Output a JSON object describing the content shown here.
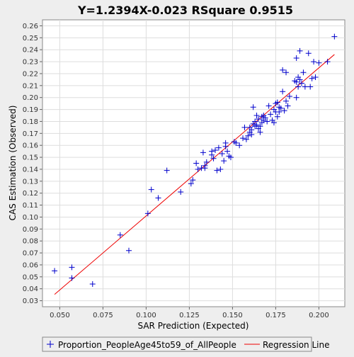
{
  "chart_data": {
    "type": "scatter",
    "title": "Y=1.2394X-0.023    RSquare 0.9515",
    "xlabel": "SAR Prediction (Expected)",
    "ylabel": "CAS Estimation (Observed)",
    "xlim": [
      0.04,
      0.215
    ],
    "ylim": [
      0.025,
      0.265
    ],
    "x_ticks": [
      "0.050",
      "0.075",
      "0.100",
      "0.125",
      "0.150",
      "0.175",
      "0.200"
    ],
    "y_ticks": [
      "0.03",
      "0.04",
      "0.05",
      "0.06",
      "0.07",
      "0.08",
      "0.09",
      "0.10",
      "0.11",
      "0.12",
      "0.13",
      "0.14",
      "0.15",
      "0.16",
      "0.17",
      "0.18",
      "0.19",
      "0.20",
      "0.21",
      "0.22",
      "0.23",
      "0.24",
      "0.25",
      "0.26"
    ],
    "grid": true,
    "legend_position": "bottom",
    "series": [
      {
        "name": "Proportion_PeopleAge45to59_of_AllPeople",
        "color": "#0000cc",
        "marker": "plus",
        "points": [
          [
            0.047,
            0.055
          ],
          [
            0.057,
            0.058
          ],
          [
            0.057,
            0.049
          ],
          [
            0.069,
            0.044
          ],
          [
            0.085,
            0.085
          ],
          [
            0.09,
            0.072
          ],
          [
            0.101,
            0.103
          ],
          [
            0.103,
            0.123
          ],
          [
            0.107,
            0.116
          ],
          [
            0.112,
            0.139
          ],
          [
            0.12,
            0.121
          ],
          [
            0.126,
            0.128
          ],
          [
            0.127,
            0.131
          ],
          [
            0.129,
            0.145
          ],
          [
            0.13,
            0.14
          ],
          [
            0.132,
            0.141
          ],
          [
            0.133,
            0.154
          ],
          [
            0.134,
            0.141
          ],
          [
            0.134,
            0.143
          ],
          [
            0.135,
            0.146
          ],
          [
            0.138,
            0.152
          ],
          [
            0.138,
            0.155
          ],
          [
            0.139,
            0.149
          ],
          [
            0.14,
            0.156
          ],
          [
            0.141,
            0.139
          ],
          [
            0.142,
            0.158
          ],
          [
            0.143,
            0.14
          ],
          [
            0.144,
            0.153
          ],
          [
            0.145,
            0.147
          ],
          [
            0.146,
            0.159
          ],
          [
            0.146,
            0.162
          ],
          [
            0.147,
            0.155
          ],
          [
            0.148,
            0.151
          ],
          [
            0.149,
            0.15
          ],
          [
            0.151,
            0.163
          ],
          [
            0.152,
            0.162
          ],
          [
            0.154,
            0.16
          ],
          [
            0.156,
            0.166
          ],
          [
            0.157,
            0.175
          ],
          [
            0.158,
            0.165
          ],
          [
            0.159,
            0.168
          ],
          [
            0.16,
            0.171
          ],
          [
            0.16,
            0.175
          ],
          [
            0.161,
            0.169
          ],
          [
            0.161,
            0.173
          ],
          [
            0.162,
            0.178
          ],
          [
            0.162,
            0.192
          ],
          [
            0.163,
            0.176
          ],
          [
            0.163,
            0.18
          ],
          [
            0.164,
            0.177
          ],
          [
            0.164,
            0.185
          ],
          [
            0.165,
            0.174
          ],
          [
            0.165,
            0.182
          ],
          [
            0.166,
            0.171
          ],
          [
            0.166,
            0.176
          ],
          [
            0.167,
            0.179
          ],
          [
            0.167,
            0.184
          ],
          [
            0.168,
            0.185
          ],
          [
            0.168,
            0.181
          ],
          [
            0.169,
            0.183
          ],
          [
            0.17,
            0.18
          ],
          [
            0.171,
            0.193
          ],
          [
            0.172,
            0.186
          ],
          [
            0.173,
            0.181
          ],
          [
            0.174,
            0.19
          ],
          [
            0.174,
            0.179
          ],
          [
            0.175,
            0.188
          ],
          [
            0.175,
            0.195
          ],
          [
            0.176,
            0.184
          ],
          [
            0.176,
            0.196
          ],
          [
            0.177,
            0.188
          ],
          [
            0.177,
            0.192
          ],
          [
            0.178,
            0.191
          ],
          [
            0.179,
            0.205
          ],
          [
            0.179,
            0.223
          ],
          [
            0.18,
            0.189
          ],
          [
            0.181,
            0.221
          ],
          [
            0.181,
            0.197
          ],
          [
            0.182,
            0.193
          ],
          [
            0.183,
            0.201
          ],
          [
            0.186,
            0.214
          ],
          [
            0.187,
            0.233
          ],
          [
            0.187,
            0.213
          ],
          [
            0.187,
            0.2
          ],
          [
            0.188,
            0.217
          ],
          [
            0.188,
            0.209
          ],
          [
            0.189,
            0.239
          ],
          [
            0.189,
            0.215
          ],
          [
            0.19,
            0.212
          ],
          [
            0.191,
            0.221
          ],
          [
            0.192,
            0.209
          ],
          [
            0.194,
            0.237
          ],
          [
            0.195,
            0.209
          ],
          [
            0.196,
            0.216
          ],
          [
            0.197,
            0.23
          ],
          [
            0.198,
            0.217
          ],
          [
            0.2,
            0.229
          ],
          [
            0.205,
            0.23
          ],
          [
            0.209,
            0.251
          ]
        ]
      },
      {
        "name": "Regression Line",
        "color": "#ee0000",
        "type": "line",
        "points": [
          [
            0.047,
            0.0353
          ],
          [
            0.209,
            0.236
          ]
        ]
      }
    ]
  }
}
